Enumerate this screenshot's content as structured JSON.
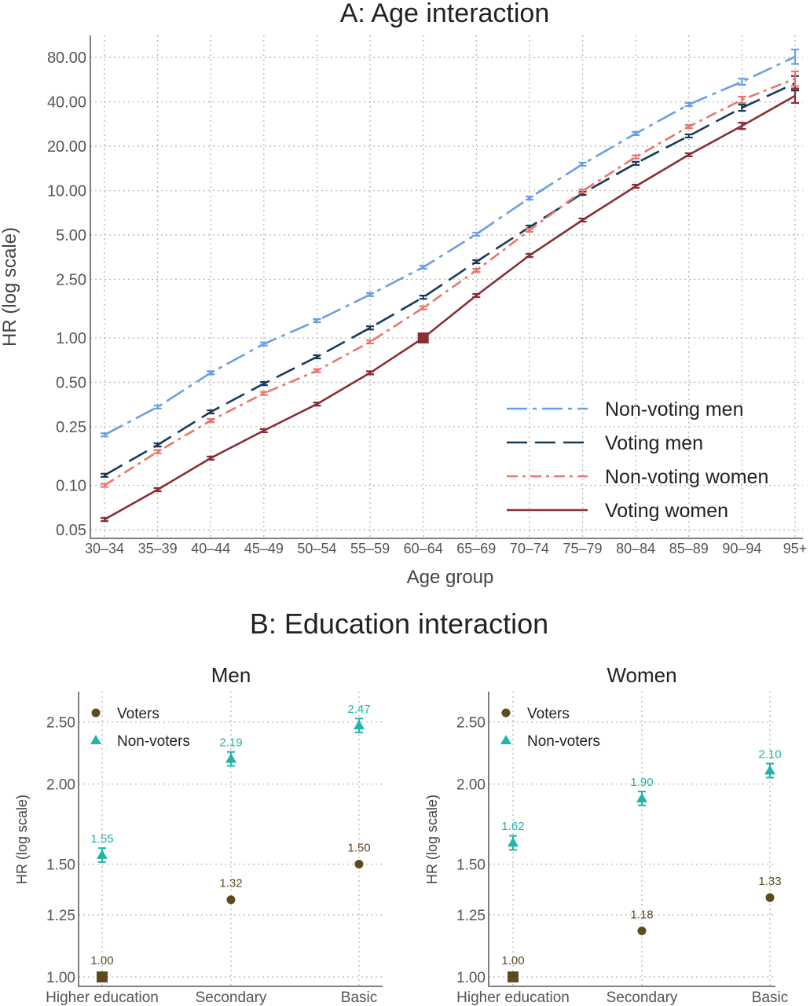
{
  "chart_data": [
    {
      "type": "line",
      "title": "A: Age interaction",
      "xlabel": "Age group",
      "ylabel": "HR (log scale)",
      "yscale": "log",
      "ylim": [
        0.05,
        100
      ],
      "yticks": [
        0.05,
        0.1,
        0.25,
        0.5,
        1.0,
        2.5,
        5.0,
        10.0,
        20.0,
        40.0,
        80.0
      ],
      "ytick_labels": [
        "0.05",
        "0.10",
        "0.25",
        "0.50",
        "1.00",
        "2.50",
        "5.00",
        "10.00",
        "20.00",
        "40.00",
        "80.00"
      ],
      "categories": [
        "30–34",
        "35–39",
        "40–44",
        "45–49",
        "50–54",
        "55–59",
        "60–64",
        "65–69",
        "70–74",
        "75–79",
        "80–84",
        "85–89",
        "90–94",
        "95+"
      ],
      "grid": true,
      "legend_position": "bottom-right",
      "reference": {
        "series": "Voting women",
        "category": "60–64",
        "value": 1.0
      },
      "series": [
        {
          "name": "Non-voting men",
          "color": "#6b9ee2",
          "style": "dash-dot",
          "values": [
            0.22,
            0.34,
            0.58,
            0.91,
            1.31,
            1.97,
            3.02,
            5.06,
            8.9,
            15.1,
            24.4,
            38.4,
            54.8,
            81
          ]
        },
        {
          "name": "Voting men",
          "color": "#183b5a",
          "style": "long-dash",
          "values": [
            0.117,
            0.188,
            0.315,
            0.49,
            0.745,
            1.17,
            1.89,
            3.29,
            5.65,
            9.58,
            15.3,
            23.5,
            36.5,
            53.5
          ]
        },
        {
          "name": "Non-voting women",
          "color": "#ea766b",
          "style": "dash",
          "values": [
            0.1,
            0.169,
            0.275,
            0.42,
            0.6,
            0.94,
            1.6,
            2.87,
            5.38,
            9.94,
            16.9,
            27.2,
            41.3,
            57.5
          ]
        },
        {
          "name": "Voting women",
          "color": "#8a2d35",
          "style": "solid",
          "values": [
            0.0586,
            0.0935,
            0.153,
            0.235,
            0.356,
            0.58,
            1.0,
            1.94,
            3.63,
            6.31,
            10.7,
            17.5,
            27.5,
            44
          ]
        }
      ]
    },
    {
      "type": "scatter",
      "title": "B: Education interaction",
      "panel_title": "Men",
      "ylabel": "HR (log scale)",
      "yscale": "log",
      "ylim": [
        0.97,
        2.78
      ],
      "yticks": [
        1.0,
        1.25,
        1.5,
        2.0,
        2.5
      ],
      "ytick_labels": [
        "1.00",
        "1.25",
        "1.50",
        "2.00",
        "2.50"
      ],
      "categories": [
        "Higher education",
        "Secondary",
        "Basic"
      ],
      "grid": true,
      "legend_position": "top-left",
      "series": [
        {
          "name": "Voters",
          "color": "#5e4a1f",
          "marker": "circle",
          "values": [
            1.0,
            1.32,
            1.5
          ],
          "labels": [
            "1.00",
            "1.32",
            "1.50"
          ]
        },
        {
          "name": "Non-voters",
          "color": "#1fb5a9",
          "marker": "triangle",
          "values": [
            1.55,
            2.19,
            2.47
          ],
          "labels": [
            "1.55",
            "2.19",
            "2.47"
          ]
        }
      ]
    },
    {
      "type": "scatter",
      "panel_title": "Women",
      "ylabel": "HR (log scale)",
      "yscale": "log",
      "ylim": [
        0.97,
        2.78
      ],
      "yticks": [
        1.0,
        1.25,
        1.5,
        2.0,
        2.5
      ],
      "ytick_labels": [
        "1.00",
        "1.25",
        "1.50",
        "2.00",
        "2.50"
      ],
      "categories": [
        "Higher education",
        "Secondary",
        "Basic"
      ],
      "grid": true,
      "legend_position": "top-left",
      "series": [
        {
          "name": "Voters",
          "color": "#5e4a1f",
          "marker": "circle",
          "values": [
            1.0,
            1.18,
            1.33
          ],
          "labels": [
            "1.00",
            "1.18",
            "1.33"
          ]
        },
        {
          "name": "Non-voters",
          "color": "#1fb5a9",
          "marker": "triangle",
          "values": [
            1.62,
            1.9,
            2.1
          ],
          "labels": [
            "1.62",
            "1.90",
            "2.10"
          ]
        }
      ]
    }
  ]
}
